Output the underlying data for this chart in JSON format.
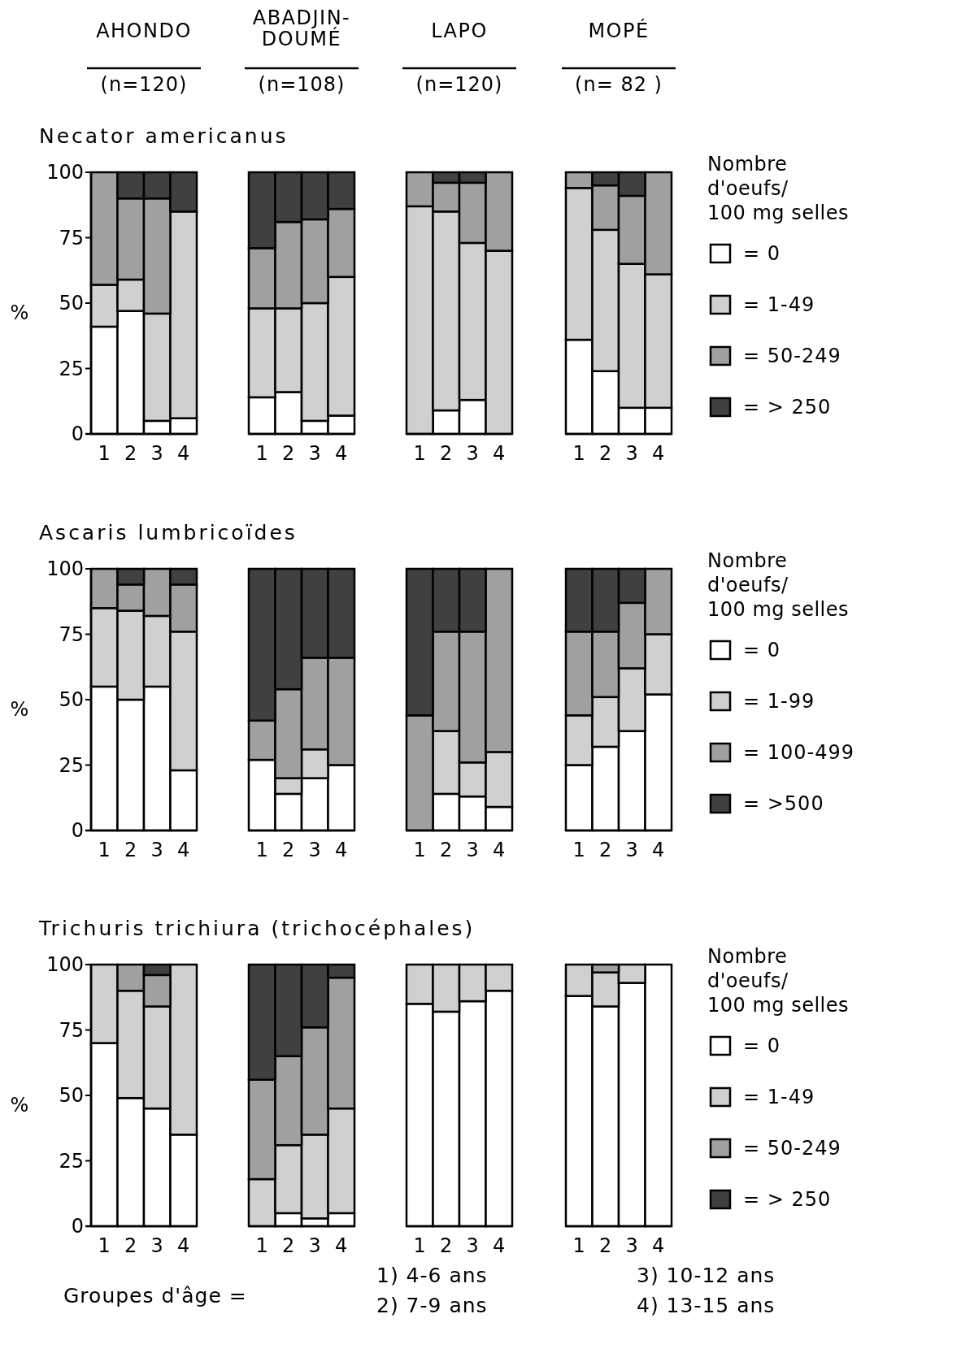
{
  "chart_data": [
    {
      "type": "bar",
      "stacked": true,
      "title": "AHONDO",
      "subtitle": "(n=120)",
      "annotations": [
        "Necator americanus"
      ],
      "ylabel": "%",
      "ylim": [
        0,
        100
      ],
      "yticks": [
        0,
        25,
        50,
        75,
        100
      ],
      "categories": [
        "1",
        "2",
        "3",
        "4"
      ],
      "series": [
        {
          "color": "#ffffff",
          "values": [
            41,
            47,
            5,
            6
          ]
        },
        {
          "color": "#d0d0d0",
          "values": [
            16,
            12,
            41,
            79
          ]
        },
        {
          "color": "#a0a0a0",
          "values": [
            43,
            31,
            44,
            0
          ]
        },
        {
          "color": "#404040",
          "values": [
            0,
            10,
            10,
            15
          ]
        }
      ]
    },
    {
      "type": "bar",
      "stacked": true,
      "title": "ABADJIN-DOUMÉ",
      "subtitle": "(n=108)",
      "tick_labels": "x",
      "ylim": [
        0,
        100
      ],
      "categories": [
        "1",
        "2",
        "3",
        "4"
      ],
      "series": [
        {
          "color": "#ffffff",
          "values": [
            14,
            16,
            5,
            7
          ]
        },
        {
          "color": "#d0d0d0",
          "values": [
            34,
            32,
            45,
            53
          ]
        },
        {
          "color": "#a0a0a0",
          "values": [
            23,
            33,
            32,
            26
          ]
        },
        {
          "color": "#404040",
          "values": [
            29,
            19,
            18,
            14
          ]
        }
      ]
    },
    {
      "type": "bar",
      "stacked": true,
      "title": "LAPO",
      "subtitle": "(n=120)",
      "tick_labels": "x",
      "ylim": [
        0,
        100
      ],
      "categories": [
        "1",
        "2",
        "3",
        "4"
      ],
      "series": [
        {
          "color": "#ffffff",
          "values": [
            0,
            9,
            13,
            0
          ]
        },
        {
          "color": "#d0d0d0",
          "values": [
            87,
            76,
            60,
            70
          ]
        },
        {
          "color": "#a0a0a0",
          "values": [
            13,
            11,
            23,
            30
          ]
        },
        {
          "color": "#404040",
          "values": [
            0,
            4,
            4,
            0
          ]
        }
      ]
    },
    {
      "type": "bar",
      "stacked": true,
      "title": "MOPÉ",
      "subtitle": "(n= 82 )",
      "tick_labels": "x",
      "ylim": [
        0,
        100
      ],
      "legend": "right",
      "legend_title": "Nombre d'oeufs/ 100 mg selles",
      "categories": [
        "1",
        "2",
        "3",
        "4"
      ],
      "series": [
        {
          "name": "= 0",
          "color": "#ffffff",
          "values": [
            36,
            24,
            10,
            10
          ]
        },
        {
          "name": "= 1-49",
          "color": "#d0d0d0",
          "values": [
            58,
            54,
            55,
            51
          ]
        },
        {
          "name": "= 50-249",
          "color": "#a0a0a0",
          "values": [
            6,
            17,
            26,
            39
          ]
        },
        {
          "name": "= > 250",
          "color": "#404040",
          "values": [
            0,
            5,
            9,
            0
          ]
        }
      ]
    },
    {
      "type": "bar",
      "stacked": true,
      "annotations": [
        "Ascaris lumbricoïdes"
      ],
      "ylabel": "%",
      "ylim": [
        0,
        100
      ],
      "yticks": [
        0,
        25,
        50,
        75,
        100
      ],
      "categories": [
        "1",
        "2",
        "3",
        "4"
      ],
      "series": [
        {
          "color": "#ffffff",
          "values": [
            55,
            50,
            55,
            23
          ]
        },
        {
          "color": "#d0d0d0",
          "values": [
            30,
            34,
            27,
            53
          ]
        },
        {
          "color": "#a0a0a0",
          "values": [
            15,
            10,
            18,
            18
          ]
        },
        {
          "color": "#404040",
          "values": [
            0,
            6,
            0,
            6
          ]
        }
      ]
    },
    {
      "type": "bar",
      "stacked": true,
      "tick_labels": "x",
      "ylim": [
        0,
        100
      ],
      "categories": [
        "1",
        "2",
        "3",
        "4"
      ],
      "series": [
        {
          "color": "#ffffff",
          "values": [
            27,
            14,
            20,
            25
          ]
        },
        {
          "color": "#d0d0d0",
          "values": [
            0,
            6,
            11,
            0
          ]
        },
        {
          "color": "#a0a0a0",
          "values": [
            15,
            34,
            35,
            41
          ]
        },
        {
          "color": "#404040",
          "values": [
            58,
            46,
            34,
            34
          ]
        }
      ]
    },
    {
      "type": "bar",
      "stacked": true,
      "tick_labels": "x",
      "ylim": [
        0,
        100
      ],
      "categories": [
        "1",
        "2",
        "3",
        "4"
      ],
      "series": [
        {
          "color": "#ffffff",
          "values": [
            0,
            14,
            13,
            9
          ]
        },
        {
          "color": "#d0d0d0",
          "values": [
            0,
            24,
            13,
            21
          ]
        },
        {
          "color": "#a0a0a0",
          "values": [
            44,
            38,
            50,
            70
          ]
        },
        {
          "color": "#404040",
          "values": [
            56,
            24,
            24,
            0
          ]
        }
      ]
    },
    {
      "type": "bar",
      "stacked": true,
      "tick_labels": "x",
      "ylim": [
        0,
        100
      ],
      "legend": "right",
      "legend_title": "Nombre d'oeufs/ 100 mg selles",
      "categories": [
        "1",
        "2",
        "3",
        "4"
      ],
      "series": [
        {
          "name": "= 0",
          "color": "#ffffff",
          "values": [
            25,
            32,
            38,
            52
          ]
        },
        {
          "name": "= 1-99",
          "color": "#d0d0d0",
          "values": [
            19,
            19,
            24,
            23
          ]
        },
        {
          "name": "= 100-499",
          "color": "#a0a0a0",
          "values": [
            32,
            25,
            25,
            25
          ]
        },
        {
          "name": "= >500",
          "color": "#404040",
          "values": [
            24,
            24,
            13,
            0
          ]
        }
      ]
    },
    {
      "type": "bar",
      "stacked": true,
      "annotations": [
        "Trichuris trichiura (trichocéphales)",
        "Groupes d'âge =",
        "1) 4-6 ans",
        "2) 7-9 ans",
        "3) 10-12 ans",
        "4) 13-15 ans"
      ],
      "ylabel": "%",
      "ylim": [
        0,
        100
      ],
      "yticks": [
        0,
        25,
        50,
        75,
        100
      ],
      "categories": [
        "1",
        "2",
        "3",
        "4"
      ],
      "series": [
        {
          "color": "#ffffff",
          "values": [
            70,
            49,
            45,
            35
          ]
        },
        {
          "color": "#d0d0d0",
          "values": [
            30,
            41,
            39,
            65
          ]
        },
        {
          "color": "#a0a0a0",
          "values": [
            0,
            10,
            12,
            0
          ]
        },
        {
          "color": "#404040",
          "values": [
            0,
            0,
            4,
            0
          ]
        }
      ]
    },
    {
      "type": "bar",
      "stacked": true,
      "tick_labels": "x",
      "ylim": [
        0,
        100
      ],
      "categories": [
        "1",
        "2",
        "3",
        "4"
      ],
      "series": [
        {
          "color": "#ffffff",
          "values": [
            0,
            5,
            3,
            5
          ]
        },
        {
          "color": "#d0d0d0",
          "values": [
            18,
            26,
            32,
            40
          ]
        },
        {
          "color": "#a0a0a0",
          "values": [
            38,
            34,
            41,
            50
          ]
        },
        {
          "color": "#404040",
          "values": [
            44,
            35,
            24,
            5
          ]
        }
      ]
    },
    {
      "type": "bar",
      "stacked": true,
      "tick_labels": "x",
      "ylim": [
        0,
        100
      ],
      "categories": [
        "1",
        "2",
        "3",
        "4"
      ],
      "series": [
        {
          "color": "#ffffff",
          "values": [
            85,
            82,
            86,
            90
          ]
        },
        {
          "color": "#d0d0d0",
          "values": [
            15,
            18,
            14,
            10
          ]
        }
      ]
    },
    {
      "type": "bar",
      "stacked": true,
      "tick_labels": "x",
      "ylim": [
        0,
        100
      ],
      "legend": "right",
      "legend_title": "Nombre d'oeufs/ 100 mg selles",
      "categories": [
        "1",
        "2",
        "3",
        "4"
      ],
      "series": [
        {
          "name": "= 0",
          "color": "#ffffff",
          "values": [
            88,
            84,
            93,
            100
          ]
        },
        {
          "name": "= 1-49",
          "color": "#d0d0d0",
          "values": [
            12,
            13,
            7,
            0
          ]
        },
        {
          "name": "= 50-249",
          "color": "#a0a0a0",
          "values": [
            0,
            3,
            0,
            0
          ]
        },
        {
          "name": "= > 250",
          "color": "#404040",
          "values": [
            0,
            0,
            0,
            0
          ]
        }
      ]
    }
  ]
}
